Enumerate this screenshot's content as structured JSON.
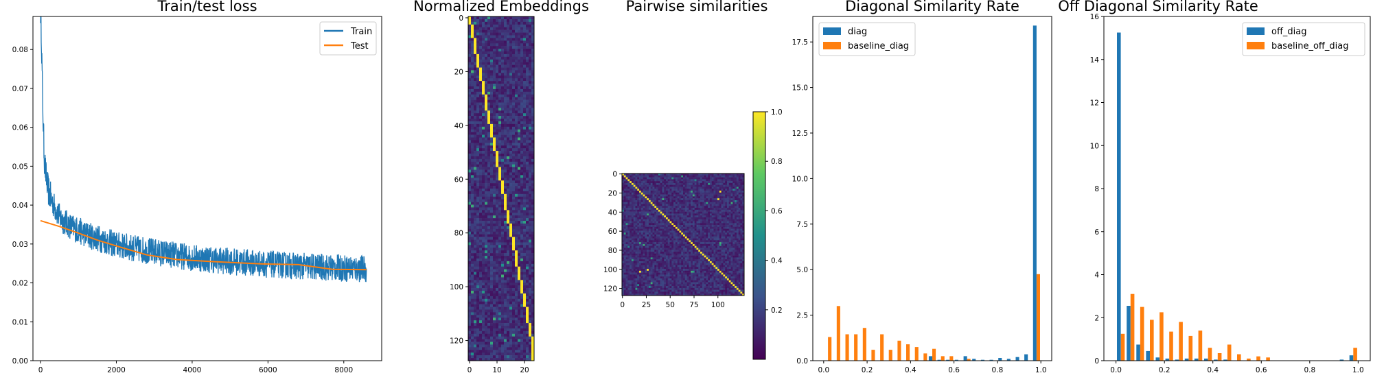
{
  "chart_data": [
    {
      "type": "line",
      "title": "Train/test loss",
      "xlim": [
        -200,
        9000
      ],
      "ylim": [
        0,
        0.0885
      ],
      "xticks": [
        0,
        2000,
        4000,
        6000,
        8000
      ],
      "xtick_labels": [
        "0",
        "2000",
        "4000",
        "6000",
        "8000"
      ],
      "yticks": [
        0,
        0.01,
        0.02,
        0.03,
        0.04,
        0.05,
        0.06,
        0.07,
        0.08
      ],
      "ytick_labels": [
        "0.00",
        "0.01",
        "0.02",
        "0.03",
        "0.04",
        "0.05",
        "0.06",
        "0.07",
        "0.08"
      ],
      "legend_position": "top-right",
      "series": [
        {
          "name": "Train",
          "color": "#1f77b4",
          "x": [
            0,
            20,
            40,
            60,
            80,
            100,
            150,
            200,
            300,
            400,
            500,
            600,
            800,
            1000,
            1200,
            1500,
            1800,
            2000,
            2500,
            3000,
            3500,
            4000,
            4500,
            5000,
            5500,
            6000,
            6500,
            7000,
            7500,
            8000,
            8600
          ],
          "y": [
            0.09,
            0.085,
            0.075,
            0.065,
            0.058,
            0.052,
            0.047,
            0.044,
            0.041,
            0.039,
            0.037,
            0.036,
            0.0345,
            0.0335,
            0.0325,
            0.0315,
            0.0305,
            0.0298,
            0.0288,
            0.028,
            0.0272,
            0.0265,
            0.026,
            0.0255,
            0.0252,
            0.0248,
            0.0245,
            0.0242,
            0.024,
            0.0238,
            0.0236
          ]
        },
        {
          "name": "Test",
          "color": "#ff7f0e",
          "x": [
            0,
            500,
            1000,
            1500,
            2000,
            2800,
            3600,
            4500,
            5800,
            6800,
            7700,
            8600
          ],
          "y": [
            0.036,
            0.0345,
            0.0328,
            0.031,
            0.0295,
            0.0272,
            0.026,
            0.0255,
            0.0249,
            0.0247,
            0.0235,
            0.0234
          ]
        }
      ]
    },
    {
      "type": "heatmap",
      "title": "Normalized Embeddings",
      "rows": 128,
      "cols": 24,
      "colormap": "viridis",
      "xticks": [
        0,
        10,
        20
      ],
      "yticks": [
        0,
        20,
        40,
        60,
        80,
        100,
        120
      ],
      "xtick_labels": [
        "0",
        "10",
        "20"
      ],
      "ytick_labels": [
        "0",
        "20",
        "40",
        "60",
        "80",
        "100",
        "120"
      ],
      "bright_diagonal": "one yellow cell per row, column advancing about 0.19 per row"
    },
    {
      "type": "heatmap",
      "title": "Pairwise similarities",
      "rows": 128,
      "cols": 128,
      "colormap": "viridis",
      "xticks": [
        0,
        25,
        50,
        75,
        100
      ],
      "yticks": [
        0,
        20,
        40,
        60,
        80,
        100,
        120
      ],
      "xtick_labels": [
        "0",
        "25",
        "50",
        "75",
        "100"
      ],
      "ytick_labels": [
        "0",
        "20",
        "40",
        "60",
        "80",
        "100",
        "120"
      ],
      "colorbar_ticks": [
        0.2,
        0.4,
        0.6,
        0.8,
        1.0
      ],
      "colorbar_tick_labels": [
        "0.2",
        "0.4",
        "0.6",
        "0.8",
        "1.0"
      ],
      "colorbar_range": [
        0,
        1.0
      ]
    },
    {
      "type": "bar",
      "title": "Diagonal Similarity Rate",
      "xlim": [
        -0.05,
        1.05
      ],
      "ylim": [
        0,
        18.9
      ],
      "xticks": [
        0,
        0.2,
        0.4,
        0.6,
        0.8,
        1.0
      ],
      "xtick_labels": [
        "0.0",
        "0.2",
        "0.4",
        "0.6",
        "0.8",
        "1.0"
      ],
      "yticks": [
        0,
        2.5,
        5.0,
        7.5,
        10.0,
        12.5,
        15.0,
        17.5
      ],
      "ytick_labels": [
        "0.0",
        "2.5",
        "5.0",
        "7.5",
        "10.0",
        "12.5",
        "15.0",
        "17.5"
      ],
      "bin_edges": [
        0,
        0.04,
        0.08,
        0.12,
        0.16,
        0.2,
        0.24,
        0.28,
        0.32,
        0.36,
        0.4,
        0.44,
        0.48,
        0.52,
        0.56,
        0.6,
        0.64,
        0.68,
        0.72,
        0.76,
        0.8,
        0.84,
        0.88,
        0.92,
        0.96,
        1.0
      ],
      "legend_position": "top-left",
      "series": [
        {
          "name": "diag",
          "color": "#1f77b4",
          "values": [
            0,
            0,
            0,
            0,
            0,
            0,
            0,
            0,
            0,
            0,
            0,
            0,
            0.25,
            0.05,
            0.05,
            0.05,
            0.25,
            0.1,
            0.05,
            0.05,
            0.15,
            0.1,
            0.2,
            0.35,
            18.4
          ]
        },
        {
          "name": "baseline_diag",
          "color": "#ff7f0e",
          "values": [
            1.3,
            3.0,
            1.45,
            1.45,
            1.8,
            0.6,
            1.45,
            0.6,
            1.1,
            0.9,
            0.75,
            0.4,
            0.65,
            0.25,
            0.25,
            0.0,
            0.1,
            0.0,
            0.0,
            0.0,
            0.0,
            0.0,
            0.0,
            0.0,
            4.75
          ]
        }
      ]
    },
    {
      "type": "bar",
      "title": "Off Diagonal Similarity Rate",
      "xlim": [
        -0.05,
        1.05
      ],
      "ylim": [
        0,
        16
      ],
      "xticks": [
        0,
        0.2,
        0.4,
        0.6,
        0.8,
        1.0
      ],
      "xtick_labels": [
        "0.0",
        "0.2",
        "0.4",
        "0.6",
        "0.8",
        "1.0"
      ],
      "yticks": [
        0,
        2,
        4,
        6,
        8,
        10,
        12,
        14,
        16
      ],
      "ytick_labels": [
        "0",
        "2",
        "4",
        "6",
        "8",
        "10",
        "12",
        "14",
        "16"
      ],
      "bin_edges": [
        0,
        0.04,
        0.08,
        0.12,
        0.16,
        0.2,
        0.24,
        0.28,
        0.32,
        0.36,
        0.4,
        0.44,
        0.48,
        0.52,
        0.56,
        0.6,
        0.64,
        0.68,
        0.72,
        0.76,
        0.8,
        0.84,
        0.88,
        0.92,
        0.96,
        1.0
      ],
      "legend_position": "top-right",
      "series": [
        {
          "name": "off_diag",
          "color": "#1f77b4",
          "values": [
            15.25,
            2.55,
            0.75,
            0.45,
            0.15,
            0.1,
            0.05,
            0.1,
            0.1,
            0.1,
            0.05,
            0.05,
            0.0,
            0.0,
            0.0,
            0.0,
            0.0,
            0.0,
            0.0,
            0.0,
            0.0,
            0.0,
            0.0,
            0.05,
            0.25
          ]
        },
        {
          "name": "baseline_off_diag",
          "color": "#ff7f0e",
          "values": [
            1.25,
            3.1,
            2.5,
            1.9,
            2.25,
            1.35,
            1.8,
            1.15,
            1.4,
            0.6,
            0.35,
            0.75,
            0.3,
            0.1,
            0.2,
            0.15,
            0.0,
            0.0,
            0.0,
            0.0,
            0.0,
            0.0,
            0.0,
            0.0,
            0.6
          ]
        }
      ]
    }
  ]
}
